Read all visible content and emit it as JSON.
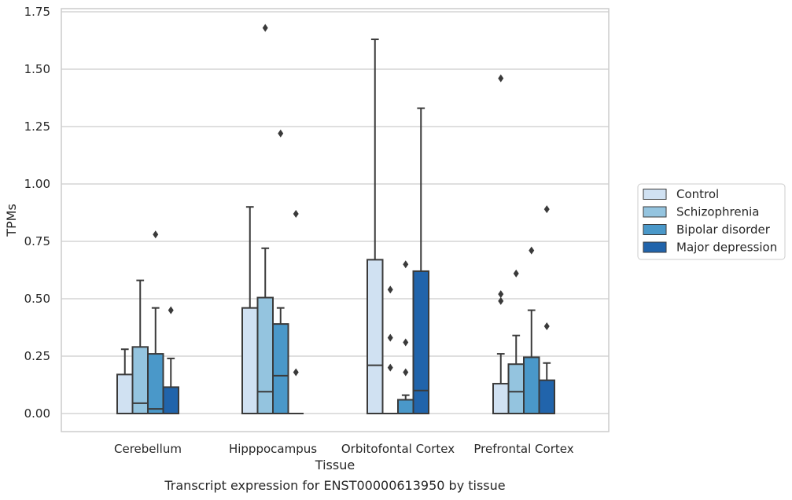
{
  "chart_data": {
    "type": "box",
    "title": "",
    "caption": "Transcript expression for ENST00000613950 by tissue",
    "xlabel": "Tissue",
    "ylabel": "TPMs",
    "ylim": [
      -0.08,
      1.76
    ],
    "yticks": [
      "0.00",
      "0.25",
      "0.50",
      "0.75",
      "1.00",
      "1.25",
      "1.50",
      "1.75"
    ],
    "ytick_values": [
      0,
      0.25,
      0.5,
      0.75,
      1.0,
      1.25,
      1.5,
      1.75
    ],
    "grid": "horizontal",
    "legend_position": "right",
    "categories": [
      "Cerebellum",
      "Hipppocampus",
      "Orbitofontal Cortex",
      "Prefrontal Cortex"
    ],
    "series": [
      {
        "name": "Control",
        "color": "#d0e1f2",
        "boxes": [
          {
            "q1": 0.0,
            "median": 0.0,
            "q3": 0.17,
            "whisker_low": 0.0,
            "whisker_high": 0.28,
            "outliers": []
          },
          {
            "q1": 0.0,
            "median": 0.0,
            "q3": 0.46,
            "whisker_low": 0.0,
            "whisker_high": 0.9,
            "outliers": []
          },
          {
            "q1": 0.0,
            "median": 0.21,
            "q3": 0.67,
            "whisker_low": 0.0,
            "whisker_high": 1.63,
            "outliers": []
          },
          {
            "q1": 0.0,
            "median": 0.0,
            "q3": 0.13,
            "whisker_low": 0.0,
            "whisker_high": 0.26,
            "outliers": [
              0.49,
              0.52,
              1.46
            ]
          }
        ]
      },
      {
        "name": "Schizophrenia",
        "color": "#94c4df",
        "boxes": [
          {
            "q1": 0.0,
            "median": 0.045,
            "q3": 0.29,
            "whisker_low": 0.0,
            "whisker_high": 0.58,
            "outliers": []
          },
          {
            "q1": 0.0,
            "median": 0.095,
            "q3": 0.505,
            "whisker_low": 0.0,
            "whisker_high": 0.72,
            "outliers": [
              1.68
            ]
          },
          {
            "q1": 0.0,
            "median": 0.0,
            "q3": 0.0,
            "whisker_low": 0.0,
            "whisker_high": 0.0,
            "outliers": [
              0.2,
              0.33,
              0.54
            ]
          },
          {
            "q1": 0.0,
            "median": 0.095,
            "q3": 0.215,
            "whisker_low": 0.0,
            "whisker_high": 0.34,
            "outliers": [
              0.61
            ]
          }
        ]
      },
      {
        "name": "Bipolar disorder",
        "color": "#4a98c9",
        "boxes": [
          {
            "q1": 0.0,
            "median": 0.02,
            "q3": 0.26,
            "whisker_low": 0.0,
            "whisker_high": 0.46,
            "outliers": [
              0.78
            ]
          },
          {
            "q1": 0.0,
            "median": 0.165,
            "q3": 0.39,
            "whisker_low": 0.0,
            "whisker_high": 0.46,
            "outliers": [
              1.22
            ]
          },
          {
            "q1": 0.0,
            "median": 0.0,
            "q3": 0.06,
            "whisker_low": 0.0,
            "whisker_high": 0.08,
            "outliers": [
              0.18,
              0.31,
              0.65
            ]
          },
          {
            "q1": 0.0,
            "median": 0.0,
            "q3": 0.245,
            "whisker_low": 0.0,
            "whisker_high": 0.45,
            "outliers": [
              0.71
            ]
          }
        ]
      },
      {
        "name": "Major depression",
        "color": "#2164ab",
        "boxes": [
          {
            "q1": 0.0,
            "median": 0.0,
            "q3": 0.115,
            "whisker_low": 0.0,
            "whisker_high": 0.24,
            "outliers": [
              0.45
            ]
          },
          {
            "q1": 0.0,
            "median": 0.0,
            "q3": 0.0,
            "whisker_low": 0.0,
            "whisker_high": 0.0,
            "outliers": [
              0.18,
              0.87
            ]
          },
          {
            "q1": 0.0,
            "median": 0.1,
            "q3": 0.62,
            "whisker_low": 0.0,
            "whisker_high": 1.33,
            "outliers": []
          },
          {
            "q1": 0.0,
            "median": 0.0,
            "q3": 0.145,
            "whisker_low": 0.0,
            "whisker_high": 0.22,
            "outliers": [
              0.38,
              0.89
            ]
          }
        ]
      }
    ]
  }
}
